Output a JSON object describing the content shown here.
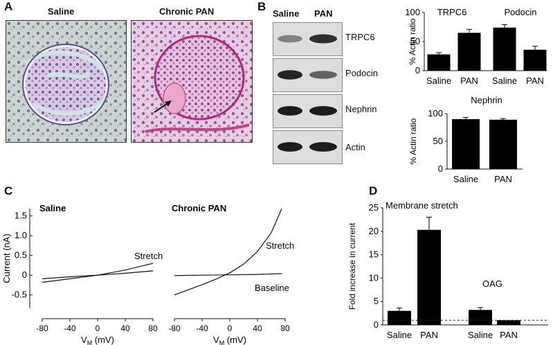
{
  "panel_labels": {
    "a": "A",
    "b": "B",
    "c": "C",
    "d": "D"
  },
  "panel_a": {
    "left_title": "Saline",
    "right_title": "Chronic PAN"
  },
  "panel_b": {
    "lane_labels": [
      "Saline",
      "PAN"
    ],
    "blot_labels": [
      "TRPC6",
      "Podocin",
      "Nephrin",
      "Actin"
    ],
    "band_intensity": {
      "TRPC6": [
        0.45,
        0.85
      ],
      "Podocin": [
        0.9,
        0.6
      ],
      "Nephrin": [
        0.95,
        0.95
      ],
      "Actin": [
        0.95,
        0.95
      ]
    }
  },
  "chart_data": [
    {
      "id": "b_top",
      "type": "bar",
      "ylabel": "% Actin ratio",
      "ylim": [
        0,
        100
      ],
      "yticks": [
        0,
        50,
        100
      ],
      "groups": [
        "TRPC6",
        "Podocin"
      ],
      "categories": [
        "Saline",
        "PAN",
        "Saline",
        "PAN"
      ],
      "values": [
        28,
        65,
        74,
        36
      ],
      "errors": [
        3,
        6,
        5,
        6
      ]
    },
    {
      "id": "b_bottom",
      "type": "bar",
      "title": "Nephrin",
      "ylabel": "% Actin ratio",
      "ylim": [
        0,
        100
      ],
      "yticks": [
        0,
        50,
        100
      ],
      "categories": [
        "Saline",
        "PAN"
      ],
      "values": [
        90,
        89
      ],
      "errors": [
        3,
        2
      ]
    },
    {
      "id": "c_saline",
      "type": "line",
      "title": "Saline",
      "ylabel": "Current (nA)",
      "xlabel_main": "V",
      "xlabel_sub": "M",
      "xlabel_unit": " (mV)",
      "xlim": [
        -80,
        80
      ],
      "ylim": [
        -0.75,
        1.6
      ],
      "xticks": [
        -80,
        -40,
        0,
        40,
        80
      ],
      "yticks": [
        -0.5,
        0,
        0.5,
        1.0,
        1.5
      ],
      "ytick_labels": [
        "-0.5",
        "0",
        "0.5",
        "1.0",
        "1.5"
      ],
      "series": [
        {
          "name": "Stretch",
          "x": [
            -80,
            -40,
            0,
            40,
            80
          ],
          "y": [
            -0.18,
            -0.09,
            0.0,
            0.13,
            0.3
          ]
        },
        {
          "x": [
            -80,
            -40,
            0,
            40,
            80
          ],
          "y": [
            -0.09,
            -0.04,
            0.0,
            0.05,
            0.11
          ]
        }
      ]
    },
    {
      "id": "c_pan",
      "type": "line",
      "title": "Chronic PAN",
      "xlabel_main": "V",
      "xlabel_sub": "M",
      "xlabel_unit": " (mV)",
      "xlim": [
        -80,
        80
      ],
      "ylim": [
        -0.75,
        1.6
      ],
      "xticks": [
        -80,
        -40,
        0,
        40,
        80
      ],
      "series": [
        {
          "name": "Stretch",
          "x": [
            -80,
            -60,
            -40,
            -20,
            0,
            20,
            40,
            60,
            75
          ],
          "y": [
            -0.5,
            -0.37,
            -0.24,
            -0.1,
            0.06,
            0.28,
            0.6,
            1.08,
            1.68
          ]
        },
        {
          "name": "Baseline",
          "x": [
            -80,
            -40,
            0,
            40,
            75
          ],
          "y": [
            -0.01,
            0.0,
            0.01,
            0.02,
            0.04
          ]
        }
      ]
    },
    {
      "id": "d",
      "type": "bar",
      "ylabel": "Fold increase in current",
      "ylim": [
        0,
        25
      ],
      "yticks": [
        0,
        5,
        10,
        15,
        20,
        25
      ],
      "groups": [
        "Membrane stretch",
        "OAG"
      ],
      "categories": [
        "Saline",
        "PAN",
        "Saline",
        "PAN"
      ],
      "values": [
        3.0,
        20.3,
        3.2,
        1.0
      ],
      "errors": [
        0.6,
        2.7,
        0.5,
        0
      ],
      "reference_line": 1
    }
  ]
}
